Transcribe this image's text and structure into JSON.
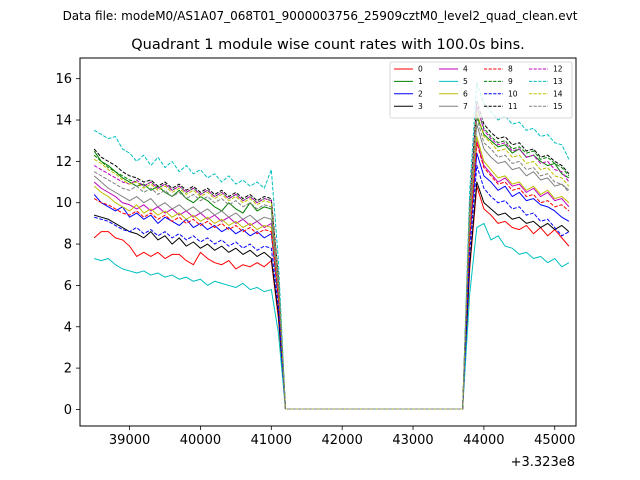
{
  "file_label": "Data file: modeM0/AS1A07_068T01_9000003756_25909cztM0_level2_quad_clean.evt",
  "chart_data": {
    "type": "line",
    "title": "Quadrant 1 module wise count rates with 100.0s bins.",
    "xlabel": "",
    "ylabel": "",
    "x_offset_label": "+3.323e8",
    "xlim": [
      38300,
      45300
    ],
    "ylim": [
      -0.8,
      17
    ],
    "xticks": [
      39000,
      40000,
      41000,
      42000,
      43000,
      44000,
      45000
    ],
    "xtick_labels": [
      "39000",
      "40000",
      "41000",
      "42000",
      "43000",
      "44000",
      "45000"
    ],
    "yticks": [
      0,
      2,
      4,
      6,
      8,
      10,
      12,
      14,
      16
    ],
    "ytick_labels": [
      "0",
      "2",
      "4",
      "6",
      "8",
      "10",
      "12",
      "14",
      "16"
    ],
    "grid": false,
    "legend_position": "top-right",
    "legend_columns": 4,
    "x": [
      38500,
      38600,
      38700,
      38800,
      38900,
      39000,
      39100,
      39200,
      39300,
      39400,
      39500,
      39600,
      39700,
      39800,
      39900,
      40000,
      40100,
      40200,
      40300,
      40400,
      40500,
      40600,
      40700,
      40800,
      40900,
      41000,
      41100,
      41200,
      43700,
      43800,
      43900,
      44000,
      44100,
      44200,
      44300,
      44400,
      44500,
      44600,
      44700,
      44800,
      44900,
      45000,
      45100,
      45200
    ],
    "series": [
      {
        "name": "0",
        "color": "#ff0000",
        "dash": "solid",
        "values": [
          8.3,
          8.6,
          8.6,
          8.3,
          8.2,
          7.9,
          7.4,
          7.6,
          7.4,
          7.6,
          7.3,
          7.5,
          7.5,
          7.2,
          7.0,
          7.6,
          7.3,
          7.1,
          7.0,
          7.2,
          6.8,
          7.0,
          6.9,
          7.1,
          6.9,
          7.2,
          4.4,
          0.02,
          0.02,
          6.8,
          10.8,
          9.7,
          9.4,
          9.0,
          9.1,
          8.8,
          8.7,
          8.9,
          8.5,
          8.8,
          8.4,
          8.7,
          8.3,
          7.9
        ]
      },
      {
        "name": "1",
        "color": "#008000",
        "dash": "solid",
        "values": [
          12.5,
          12.0,
          11.8,
          11.5,
          11.2,
          11.0,
          10.8,
          10.9,
          10.6,
          10.8,
          10.5,
          10.3,
          10.6,
          10.2,
          10.0,
          10.3,
          10.1,
          9.8,
          9.6,
          10.0,
          9.7,
          9.5,
          10.0,
          9.6,
          9.8,
          9.7,
          6.1,
          0.02,
          0.02,
          9.4,
          14.2,
          13.3,
          13.0,
          12.7,
          12.8,
          12.4,
          12.6,
          12.2,
          12.3,
          12.0,
          11.8,
          11.9,
          11.4,
          11.2
        ]
      },
      {
        "name": "2",
        "color": "#0000ff",
        "dash": "solid",
        "values": [
          10.4,
          10.0,
          9.8,
          9.6,
          9.8,
          9.3,
          9.5,
          9.2,
          9.4,
          9.0,
          9.3,
          9.1,
          8.9,
          9.2,
          8.8,
          9.0,
          8.7,
          8.9,
          8.6,
          8.8,
          8.5,
          8.7,
          8.4,
          8.6,
          8.3,
          8.5,
          5.3,
          0.02,
          0.02,
          8.2,
          12.4,
          11.3,
          11.0,
          10.6,
          10.8,
          10.3,
          10.5,
          10.1,
          10.2,
          9.9,
          9.8,
          9.6,
          9.3,
          9.1
        ]
      },
      {
        "name": "3",
        "color": "#000000",
        "dash": "solid",
        "values": [
          9.4,
          9.3,
          9.2,
          9.0,
          8.8,
          8.6,
          8.5,
          8.3,
          8.6,
          8.2,
          8.4,
          8.0,
          8.3,
          7.9,
          8.1,
          7.8,
          8.0,
          7.7,
          7.9,
          7.6,
          7.8,
          7.5,
          7.7,
          7.4,
          7.6,
          7.3,
          4.6,
          0.02,
          0.02,
          7.0,
          11.0,
          10.0,
          9.7,
          9.4,
          9.5,
          9.2,
          9.3,
          9.0,
          9.1,
          8.8,
          9.0,
          8.7,
          8.9,
          8.6
        ]
      },
      {
        "name": "4",
        "color": "#bf00bf",
        "dash": "solid",
        "values": [
          11.0,
          10.7,
          10.5,
          10.3,
          10.0,
          9.9,
          9.7,
          9.9,
          9.6,
          9.8,
          9.5,
          9.7,
          9.4,
          9.6,
          9.3,
          9.5,
          9.2,
          9.4,
          9.1,
          9.3,
          9.0,
          9.2,
          8.9,
          9.1,
          8.8,
          9.0,
          5.6,
          0.02,
          0.02,
          8.4,
          13.0,
          11.8,
          11.4,
          11.0,
          11.2,
          10.8,
          10.9,
          10.5,
          10.7,
          10.3,
          10.5,
          10.1,
          10.2,
          9.8
        ]
      },
      {
        "name": "5",
        "color": "#00bfbf",
        "dash": "solid",
        "values": [
          7.3,
          7.2,
          7.3,
          7.0,
          6.8,
          6.7,
          6.6,
          6.7,
          6.5,
          6.6,
          6.4,
          6.5,
          6.3,
          6.4,
          6.2,
          6.3,
          6.0,
          6.2,
          6.1,
          6.0,
          5.9,
          6.1,
          5.8,
          5.9,
          5.7,
          5.8,
          3.7,
          0.02,
          0.02,
          5.6,
          8.8,
          9.0,
          8.2,
          8.4,
          7.9,
          7.8,
          7.5,
          7.6,
          7.3,
          7.4,
          7.1,
          7.3,
          6.9,
          7.1
        ]
      },
      {
        "name": "6",
        "color": "#bfbf00",
        "dash": "solid",
        "values": [
          10.8,
          10.5,
          10.3,
          10.0,
          9.8,
          9.6,
          9.9,
          9.5,
          9.7,
          9.4,
          9.6,
          9.3,
          9.5,
          9.2,
          9.4,
          9.1,
          9.3,
          9.0,
          9.2,
          8.9,
          9.1,
          8.8,
          9.0,
          8.7,
          8.9,
          8.8,
          5.5,
          0.02,
          0.02,
          8.6,
          13.2,
          12.0,
          11.6,
          11.2,
          11.3,
          10.9,
          11.0,
          10.6,
          10.8,
          10.4,
          10.6,
          10.2,
          10.3,
          10.0
        ]
      },
      {
        "name": "7",
        "color": "#808080",
        "dash": "solid",
        "values": [
          11.3,
          11.0,
          10.7,
          10.5,
          10.3,
          10.1,
          10.3,
          10.0,
          10.2,
          9.8,
          10.0,
          9.7,
          9.9,
          9.6,
          9.8,
          9.5,
          9.7,
          9.4,
          9.6,
          9.3,
          9.5,
          9.2,
          9.4,
          9.1,
          9.3,
          9.2,
          5.8,
          0.02,
          0.02,
          9.0,
          13.8,
          12.6,
          12.2,
          11.9,
          12.0,
          11.6,
          11.7,
          11.3,
          11.5,
          11.1,
          11.2,
          10.8,
          10.9,
          10.6
        ]
      },
      {
        "name": "8",
        "color": "#ff0000",
        "dash": "dashed",
        "values": [
          10.2,
          10.0,
          9.9,
          9.7,
          9.5,
          9.4,
          9.6,
          9.3,
          9.5,
          9.2,
          9.4,
          9.1,
          9.3,
          9.0,
          9.2,
          8.9,
          9.1,
          8.8,
          9.0,
          8.7,
          8.9,
          8.6,
          8.8,
          8.5,
          8.7,
          8.6,
          5.4,
          0.02,
          0.02,
          8.3,
          12.9,
          11.7,
          11.3,
          10.9,
          11.0,
          10.6,
          10.7,
          10.3,
          10.4,
          10.0,
          10.1,
          9.8,
          9.9,
          9.6
        ]
      },
      {
        "name": "9",
        "color": "#008000",
        "dash": "dashed",
        "values": [
          12.3,
          12.0,
          11.7,
          11.5,
          11.3,
          11.1,
          11.0,
          10.8,
          11.0,
          10.7,
          10.9,
          10.6,
          10.8,
          10.5,
          10.7,
          10.4,
          10.6,
          10.3,
          10.5,
          10.2,
          10.4,
          10.1,
          10.3,
          10.0,
          10.2,
          10.1,
          6.3,
          0.02,
          0.02,
          9.7,
          14.6,
          13.6,
          13.2,
          12.9,
          13.0,
          12.6,
          12.7,
          12.4,
          12.5,
          12.1,
          12.2,
          11.9,
          11.7,
          11.3
        ]
      },
      {
        "name": "10",
        "color": "#0000ff",
        "dash": "dashed",
        "values": [
          9.3,
          9.2,
          9.1,
          8.9,
          8.7,
          8.6,
          8.8,
          8.5,
          8.7,
          8.4,
          8.6,
          8.3,
          8.5,
          8.2,
          8.4,
          8.1,
          8.3,
          8.0,
          8.2,
          7.9,
          8.1,
          7.8,
          8.0,
          7.7,
          7.9,
          7.8,
          4.9,
          0.02,
          0.02,
          7.6,
          11.8,
          10.7,
          10.3,
          10.0,
          10.1,
          9.7,
          9.8,
          9.4,
          9.5,
          9.1,
          9.2,
          8.8,
          8.4,
          8.6
        ]
      },
      {
        "name": "11",
        "color": "#000000",
        "dash": "dashed",
        "values": [
          12.6,
          12.2,
          12.0,
          11.8,
          11.5,
          11.3,
          11.2,
          11.0,
          11.1,
          10.8,
          11.0,
          10.7,
          10.9,
          10.6,
          10.8,
          10.5,
          10.7,
          10.4,
          10.6,
          10.3,
          10.5,
          10.2,
          10.4,
          10.1,
          10.3,
          10.2,
          6.4,
          0.02,
          0.02,
          9.9,
          14.9,
          13.8,
          13.4,
          13.1,
          13.2,
          12.8,
          12.9,
          12.5,
          12.6,
          12.2,
          12.3,
          12.0,
          11.8,
          11.4
        ]
      },
      {
        "name": "12",
        "color": "#bf00bf",
        "dash": "dashed",
        "values": [
          11.8,
          11.6,
          11.4,
          11.2,
          11.0,
          10.9,
          11.1,
          10.8,
          11.0,
          10.7,
          10.9,
          10.6,
          10.8,
          10.5,
          10.7,
          10.4,
          10.6,
          10.3,
          10.5,
          10.2,
          10.4,
          10.1,
          10.3,
          10.0,
          10.2,
          10.1,
          6.3,
          0.02,
          0.02,
          9.8,
          14.7,
          13.5,
          13.1,
          12.8,
          12.9,
          12.5,
          12.6,
          12.2,
          12.3,
          11.9,
          12.0,
          11.6,
          11.5,
          11.0
        ]
      },
      {
        "name": "13",
        "color": "#00bfbf",
        "dash": "dashed",
        "values": [
          13.5,
          13.3,
          13.1,
          13.2,
          12.6,
          12.4,
          12.0,
          12.3,
          11.8,
          12.2,
          11.7,
          12.0,
          11.5,
          11.8,
          11.4,
          11.6,
          11.2,
          11.4,
          11.0,
          11.3,
          10.9,
          11.1,
          10.8,
          11.0,
          10.7,
          11.6,
          7.2,
          0.02,
          0.02,
          10.6,
          15.8,
          14.8,
          14.4,
          14.0,
          14.2,
          13.8,
          13.9,
          13.5,
          13.6,
          13.2,
          13.3,
          12.9,
          12.8,
          12.1
        ]
      },
      {
        "name": "14",
        "color": "#bfbf00",
        "dash": "dashed",
        "values": [
          12.1,
          11.9,
          11.6,
          11.4,
          11.1,
          10.9,
          11.0,
          10.7,
          10.9,
          10.6,
          10.8,
          10.5,
          10.7,
          10.4,
          10.6,
          10.3,
          10.5,
          10.2,
          10.4,
          10.1,
          10.3,
          10.0,
          10.2,
          9.9,
          10.1,
          10.0,
          6.2,
          0.02,
          0.02,
          9.6,
          14.4,
          13.2,
          12.9,
          12.5,
          12.6,
          12.2,
          12.3,
          11.9,
          12.0,
          11.6,
          11.7,
          11.3,
          11.2,
          10.8
        ]
      },
      {
        "name": "15",
        "color": "#808080",
        "dash": "dashed",
        "values": [
          11.5,
          11.3,
          11.1,
          10.9,
          10.7,
          10.6,
          10.8,
          10.5,
          10.7,
          10.4,
          10.6,
          10.3,
          10.5,
          10.2,
          10.4,
          10.1,
          10.3,
          10.0,
          10.2,
          9.9,
          10.1,
          9.8,
          10.0,
          9.7,
          9.9,
          9.8,
          6.1,
          0.02,
          0.02,
          9.5,
          14.1,
          12.9,
          12.6,
          12.2,
          12.3,
          11.9,
          12.0,
          11.6,
          11.7,
          11.3,
          11.4,
          11.0,
          10.9,
          10.5
        ]
      }
    ]
  }
}
